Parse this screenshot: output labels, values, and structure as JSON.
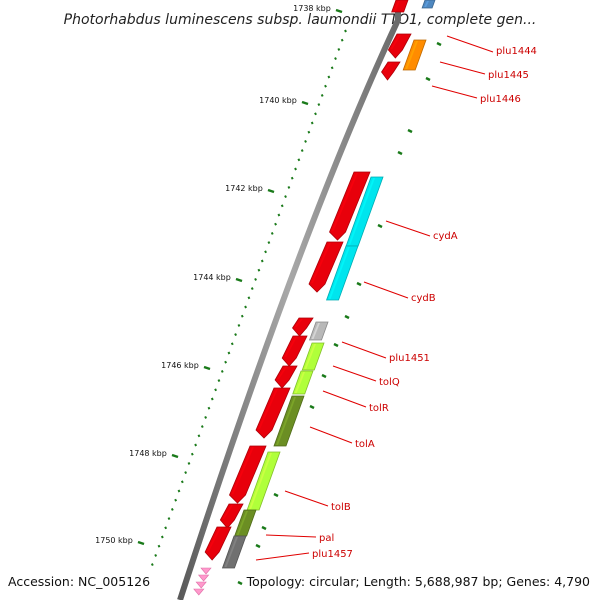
{
  "title": "Photorhabdus luminescens subsp. laumondii TTO1, complete gen...",
  "footer": {
    "accession": "Accession: NC_005126",
    "topology": "Topology: circular; Length: 5,688,987 bp; Genes: 4,790"
  },
  "ruler_ticks": [
    "1738 kbp",
    "1740 kbp",
    "1742 kbp",
    "1744 kbp",
    "1746 kbp",
    "1748 kbp",
    "1750 kbp"
  ],
  "gene_labels": [
    "plu1444",
    "plu1445",
    "plu1446",
    "cydA",
    "cydB",
    "plu1451",
    "tolQ",
    "tolR",
    "tolA",
    "tolB",
    "pal",
    "plu1457"
  ],
  "colors": {
    "backbone": "#8a8a8a",
    "forward_cds": "#e8000b",
    "reverse_cds": "#e8000b",
    "cyan": "#00e5ee",
    "lime": "#b0ff3a",
    "olive": "#6b8e23",
    "orange": "#ff8c00",
    "gray": "#b8b8b8",
    "dark_gray": "#707070",
    "pink": "#ff99cc",
    "tick": "#1a7a1a",
    "label": "#cc0000"
  }
}
